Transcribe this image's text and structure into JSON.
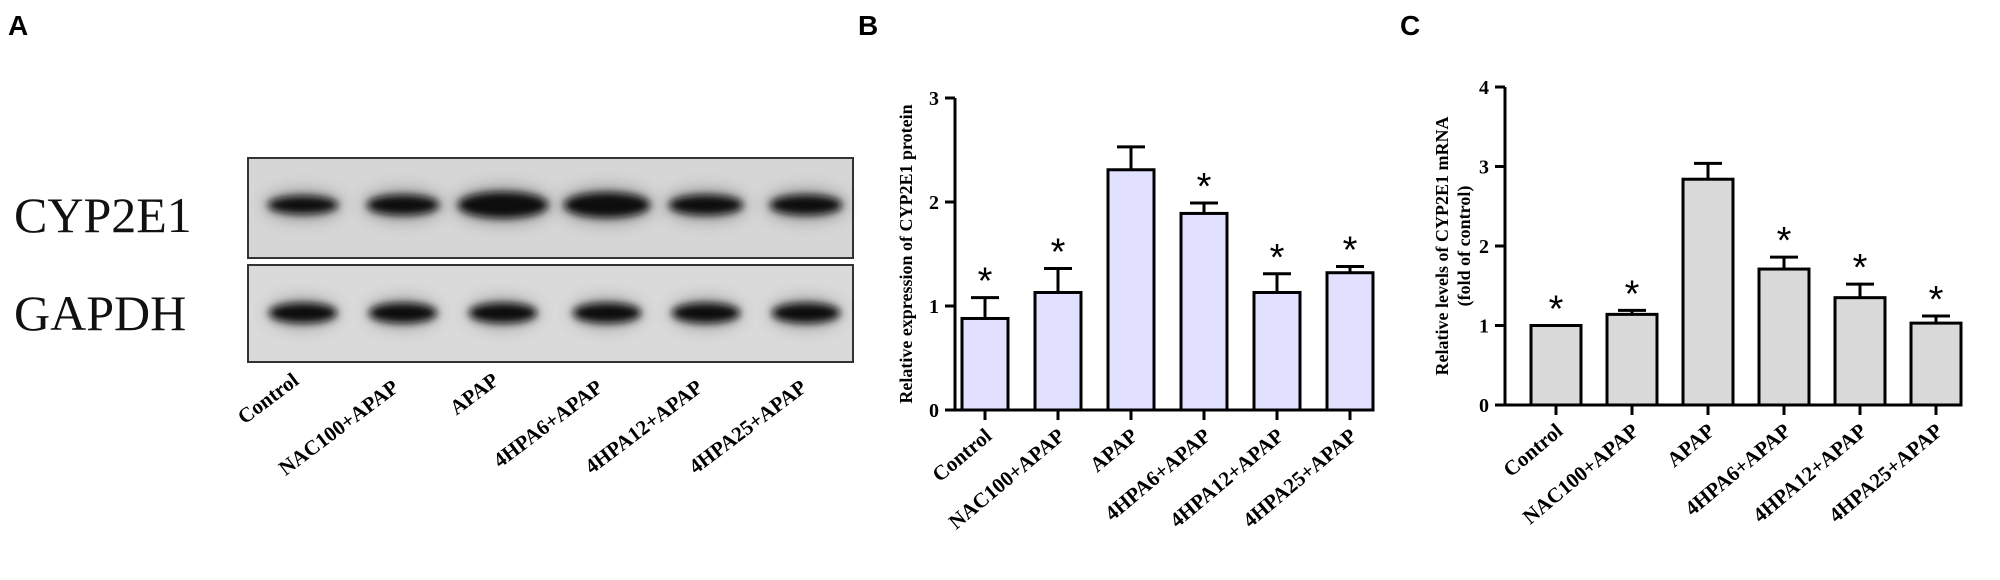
{
  "panels": {
    "a": "A",
    "b": "B",
    "c": "C"
  },
  "blot": {
    "bands": [
      "CYP2E1",
      "GAPDH"
    ],
    "categories": [
      "Control",
      "NAC100+APAP",
      "APAP",
      "4HPA6+APAP",
      "4HPA12+APAP",
      "4HPA25+APAP"
    ]
  },
  "chart_data": [
    {
      "type": "bar",
      "panel": "B",
      "categories": [
        "Control",
        "NAC100+APAP",
        "APAP",
        "4HPA6+APAP",
        "4HPA12+APAP",
        "4HPA25+APAP"
      ],
      "values": [
        0.88,
        1.13,
        2.31,
        1.89,
        1.13,
        1.32
      ],
      "errors": [
        0.2,
        0.23,
        0.22,
        0.1,
        0.18,
        0.06
      ],
      "significance": [
        "*",
        "*",
        "",
        "*",
        "*",
        "*"
      ],
      "ylabel": "Relative expression of CYP2E1 protein",
      "ylim": [
        0,
        3
      ],
      "yticks": [
        "0",
        "1",
        "2",
        "3"
      ],
      "color": "#e1e1ff"
    },
    {
      "type": "bar",
      "panel": "C",
      "categories": [
        "Control",
        "NAC100+APAP",
        "APAP",
        "4HPA6+APAP",
        "4HPA12+APAP",
        "4HPA25+APAP"
      ],
      "values": [
        1.0,
        1.14,
        2.84,
        1.71,
        1.35,
        1.03
      ],
      "errors": [
        0.0,
        0.05,
        0.2,
        0.15,
        0.17,
        0.09
      ],
      "significance": [
        "*",
        "*",
        "",
        "*",
        "*",
        "*"
      ],
      "ylabel": "Relative levels of CYP2E1 mRNA",
      "ylabel2": "(fold of control)",
      "ylim": [
        0,
        4
      ],
      "yticks": [
        "0",
        "1",
        "2",
        "3",
        "4"
      ],
      "color": "#d9d9d9"
    }
  ]
}
